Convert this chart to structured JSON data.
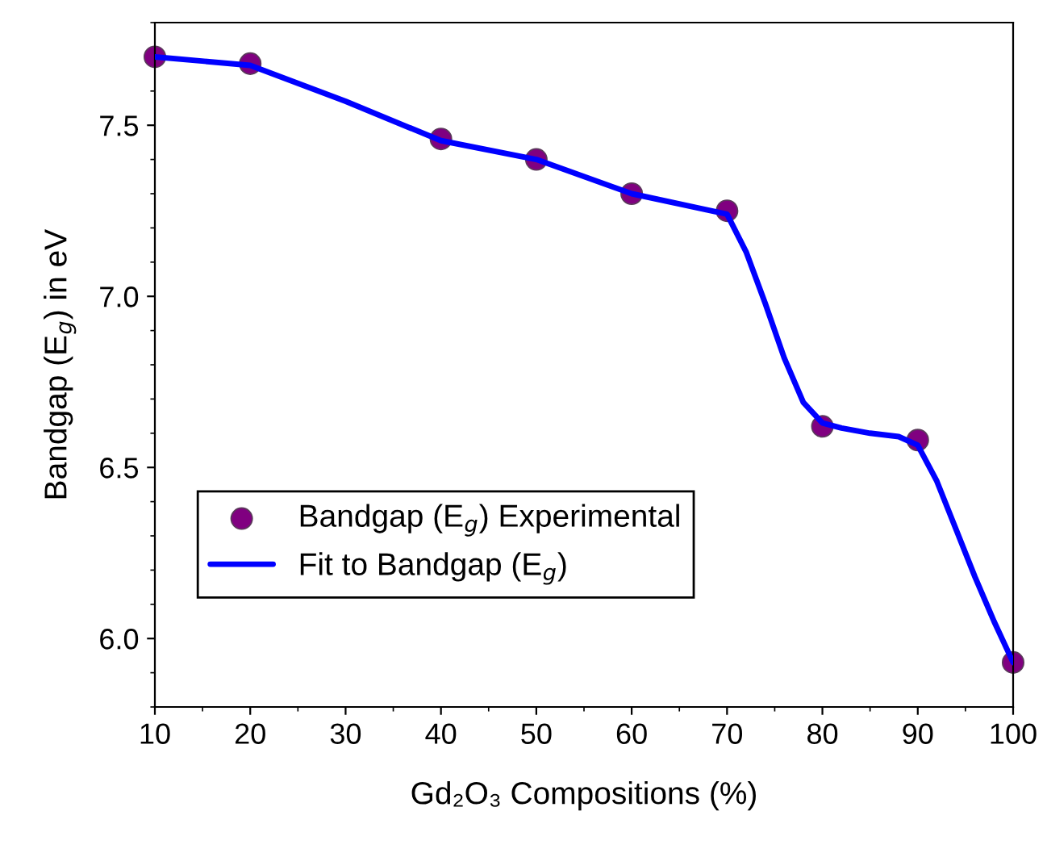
{
  "chart_data": {
    "type": "scatter",
    "xlabel": "Gd₂O₃ Compositions (%)",
    "ylabel": "Bandgap (E$_{g}$) in eV",
    "x": [
      10,
      20,
      40,
      50,
      60,
      70,
      80,
      90,
      100
    ],
    "series": [
      {
        "name": "Bandgap (E$_{g}$) Experimental",
        "color": "#800080",
        "marker": "circle",
        "values": [
          7.7,
          7.68,
          7.46,
          7.4,
          7.3,
          7.25,
          6.62,
          6.58,
          5.93
        ]
      },
      {
        "name": "Fit to Bandgap (E$_{g}$)",
        "type": "line",
        "color": "#0000ff",
        "marker": "none",
        "line_style": "solid",
        "x": [
          10,
          20,
          30,
          40,
          50,
          60,
          70,
          72,
          74,
          76,
          78,
          80,
          82,
          85,
          88,
          90,
          92,
          94,
          96,
          98,
          100
        ],
        "values": [
          7.7,
          7.675,
          7.57,
          7.455,
          7.4,
          7.3,
          7.24,
          7.13,
          6.98,
          6.82,
          6.69,
          6.63,
          6.615,
          6.6,
          6.59,
          6.565,
          6.46,
          6.32,
          6.18,
          6.05,
          5.93
        ]
      }
    ],
    "xlim": [
      10,
      100
    ],
    "xticks": [
      10,
      20,
      30,
      40,
      50,
      60,
      70,
      80,
      90,
      100
    ],
    "ylim": [
      5.8,
      7.8
    ],
    "yticks": [
      {
        "value": 6.0,
        "label": "6.0"
      },
      {
        "value": 6.5,
        "label": "6.5"
      },
      {
        "value": 7.0,
        "label": "7.0"
      },
      {
        "value": 7.5,
        "label": "7.5"
      }
    ],
    "grid": false,
    "legend": "bottom left"
  }
}
